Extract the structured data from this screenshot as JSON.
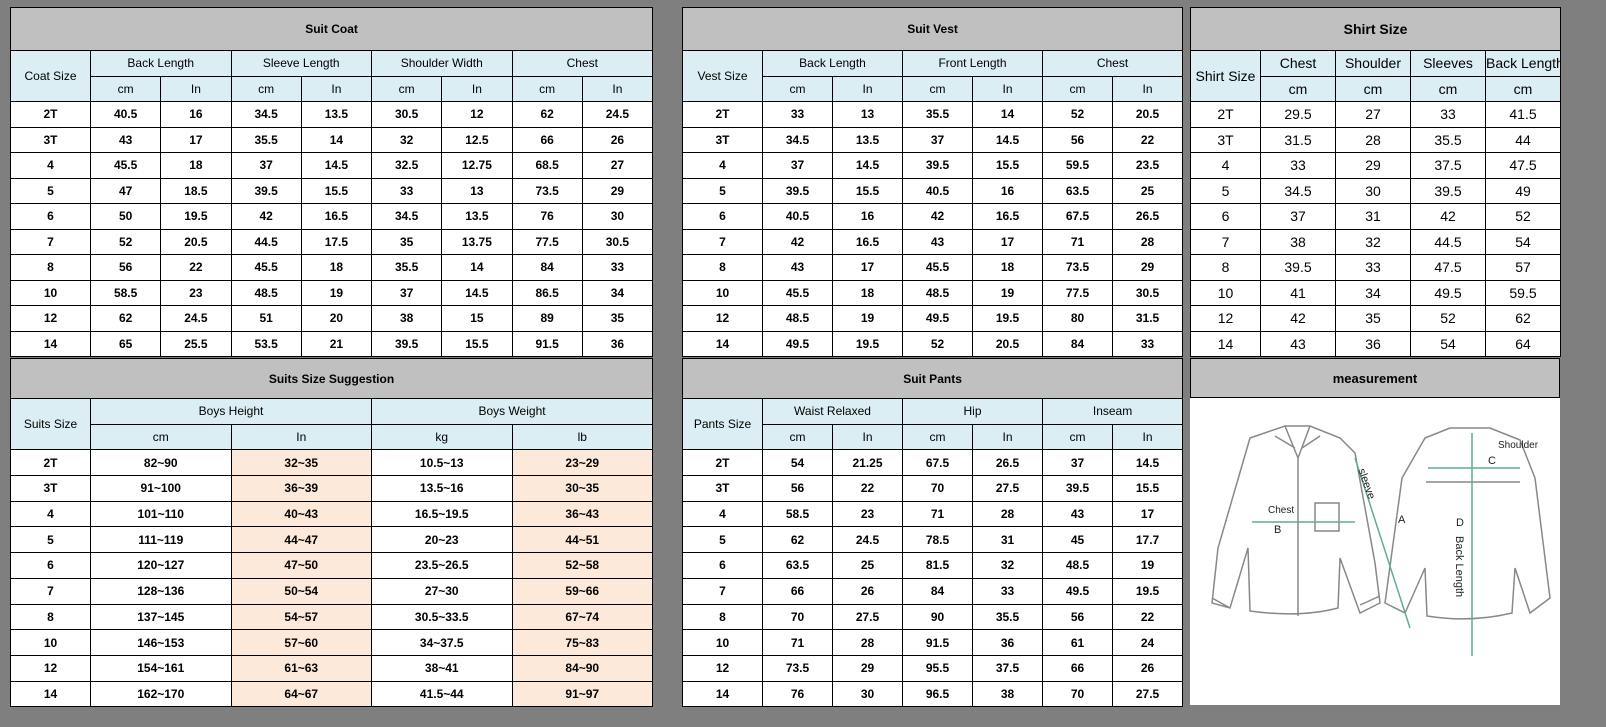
{
  "suit_coat": {
    "title": "Suit Coat",
    "size_label": "Coat Size",
    "groups": [
      "Back Length",
      "Sleeve Length",
      "Shoulder Width",
      "Chest"
    ],
    "units": [
      "cm",
      "In",
      "cm",
      "In",
      "cm",
      "In",
      "cm",
      "In"
    ],
    "rows": [
      [
        "2T",
        "40.5",
        "16",
        "34.5",
        "13.5",
        "30.5",
        "12",
        "62",
        "24.5"
      ],
      [
        "3T",
        "43",
        "17",
        "35.5",
        "14",
        "32",
        "12.5",
        "66",
        "26"
      ],
      [
        "4",
        "45.5",
        "18",
        "37",
        "14.5",
        "32.5",
        "12.75",
        "68.5",
        "27"
      ],
      [
        "5",
        "47",
        "18.5",
        "39.5",
        "15.5",
        "33",
        "13",
        "73.5",
        "29"
      ],
      [
        "6",
        "50",
        "19.5",
        "42",
        "16.5",
        "34.5",
        "13.5",
        "76",
        "30"
      ],
      [
        "7",
        "52",
        "20.5",
        "44.5",
        "17.5",
        "35",
        "13.75",
        "77.5",
        "30.5"
      ],
      [
        "8",
        "56",
        "22",
        "45.5",
        "18",
        "35.5",
        "14",
        "84",
        "33"
      ],
      [
        "10",
        "58.5",
        "23",
        "48.5",
        "19",
        "37",
        "14.5",
        "86.5",
        "34"
      ],
      [
        "12",
        "62",
        "24.5",
        "51",
        "20",
        "38",
        "15",
        "89",
        "35"
      ],
      [
        "14",
        "65",
        "25.5",
        "53.5",
        "21",
        "39.5",
        "15.5",
        "91.5",
        "36"
      ]
    ]
  },
  "suit_vest": {
    "title": "Suit Vest",
    "size_label": "Vest Size",
    "groups": [
      "Back Length",
      "Front Length",
      "Chest"
    ],
    "units": [
      "cm",
      "In",
      "cm",
      "In",
      "cm",
      "In"
    ],
    "rows": [
      [
        "2T",
        "33",
        "13",
        "35.5",
        "14",
        "52",
        "20.5"
      ],
      [
        "3T",
        "34.5",
        "13.5",
        "37",
        "14.5",
        "56",
        "22"
      ],
      [
        "4",
        "37",
        "14.5",
        "39.5",
        "15.5",
        "59.5",
        "23.5"
      ],
      [
        "5",
        "39.5",
        "15.5",
        "40.5",
        "16",
        "63.5",
        "25"
      ],
      [
        "6",
        "40.5",
        "16",
        "42",
        "16.5",
        "67.5",
        "26.5"
      ],
      [
        "7",
        "42",
        "16.5",
        "43",
        "17",
        "71",
        "28"
      ],
      [
        "8",
        "43",
        "17",
        "45.5",
        "18",
        "73.5",
        "29"
      ],
      [
        "10",
        "45.5",
        "18",
        "48.5",
        "19",
        "77.5",
        "30.5"
      ],
      [
        "12",
        "48.5",
        "19",
        "49.5",
        "19.5",
        "80",
        "31.5"
      ],
      [
        "14",
        "49.5",
        "19.5",
        "52",
        "20.5",
        "84",
        "33"
      ]
    ]
  },
  "shirt_size": {
    "title": "Shirt Size",
    "size_label": "Shirt Size",
    "groups": [
      "Chest",
      "Shoulder",
      "Sleeves",
      "Back Length"
    ],
    "units": [
      "cm",
      "cm",
      "cm",
      "cm"
    ],
    "rows": [
      [
        "2T",
        "29.5",
        "27",
        "33",
        "41.5"
      ],
      [
        "3T",
        "31.5",
        "28",
        "35.5",
        "44"
      ],
      [
        "4",
        "33",
        "29",
        "37.5",
        "47.5"
      ],
      [
        "5",
        "34.5",
        "30",
        "39.5",
        "49"
      ],
      [
        "6",
        "37",
        "31",
        "42",
        "52"
      ],
      [
        "7",
        "38",
        "32",
        "44.5",
        "54"
      ],
      [
        "8",
        "39.5",
        "33",
        "47.5",
        "57"
      ],
      [
        "10",
        "41",
        "34",
        "49.5",
        "59.5"
      ],
      [
        "12",
        "42",
        "35",
        "52",
        "62"
      ],
      [
        "14",
        "43",
        "36",
        "54",
        "64"
      ]
    ]
  },
  "suits_size_suggestion": {
    "title": "Suits Size Suggestion",
    "size_label": "Suits Size",
    "groups": [
      "Boys Height",
      "Boys Weight"
    ],
    "units": [
      "cm",
      "In",
      "kg",
      "lb"
    ],
    "highlight_color": "#fde9d9",
    "rows": [
      [
        "2T",
        "82~90",
        "32~35",
        "10.5~13",
        "23~29"
      ],
      [
        "3T",
        "91~100",
        "36~39",
        "13.5~16",
        "30~35"
      ],
      [
        "4",
        "101~110",
        "40~43",
        "16.5~19.5",
        "36~43"
      ],
      [
        "5",
        "111~119",
        "44~47",
        "20~23",
        "44~51"
      ],
      [
        "6",
        "120~127",
        "47~50",
        "23.5~26.5",
        "52~58"
      ],
      [
        "7",
        "128~136",
        "50~54",
        "27~30",
        "59~66"
      ],
      [
        "8",
        "137~145",
        "54~57",
        "30.5~33.5",
        "67~74"
      ],
      [
        "10",
        "146~153",
        "57~60",
        "34~37.5",
        "75~83"
      ],
      [
        "12",
        "154~161",
        "61~63",
        "38~41",
        "84~90"
      ],
      [
        "14",
        "162~170",
        "64~67",
        "41.5~44",
        "91~97"
      ]
    ]
  },
  "suit_pants": {
    "title": "Suit Pants",
    "size_label": "Pants Size",
    "groups": [
      "Waist Relaxed",
      "Hip",
      "Inseam"
    ],
    "units": [
      "cm",
      "In",
      "cm",
      "In",
      "cm",
      "In"
    ],
    "rows": [
      [
        "2T",
        "54",
        "21.25",
        "67.5",
        "26.5",
        "37",
        "14.5"
      ],
      [
        "3T",
        "56",
        "22",
        "70",
        "27.5",
        "39.5",
        "15.5"
      ],
      [
        "4",
        "58.5",
        "23",
        "71",
        "28",
        "43",
        "17"
      ],
      [
        "5",
        "62",
        "24.5",
        "78.5",
        "31",
        "45",
        "17.7"
      ],
      [
        "6",
        "63.5",
        "25",
        "81.5",
        "32",
        "48.5",
        "19"
      ],
      [
        "7",
        "66",
        "26",
        "84",
        "33",
        "49.5",
        "19.5"
      ],
      [
        "8",
        "70",
        "27.5",
        "90",
        "35.5",
        "56",
        "22"
      ],
      [
        "10",
        "71",
        "28",
        "91.5",
        "36",
        "61",
        "24"
      ],
      [
        "12",
        "73.5",
        "29",
        "95.5",
        "37.5",
        "66",
        "26"
      ],
      [
        "14",
        "76",
        "30",
        "96.5",
        "38",
        "70",
        "27.5"
      ]
    ]
  },
  "measurement": {
    "title": "measurement",
    "labels": {
      "chest": "Chest",
      "b": "B",
      "sleeve": "sleeve",
      "a": "A",
      "shoulder": "Shoulder",
      "c": "C",
      "d": "D",
      "back_length": "Back Length"
    },
    "line_color": "#5fae8c"
  },
  "colors": {
    "title_bg": "#c0c0c0",
    "header_bg": "#daeef3",
    "frame": "#7f7f7f"
  }
}
